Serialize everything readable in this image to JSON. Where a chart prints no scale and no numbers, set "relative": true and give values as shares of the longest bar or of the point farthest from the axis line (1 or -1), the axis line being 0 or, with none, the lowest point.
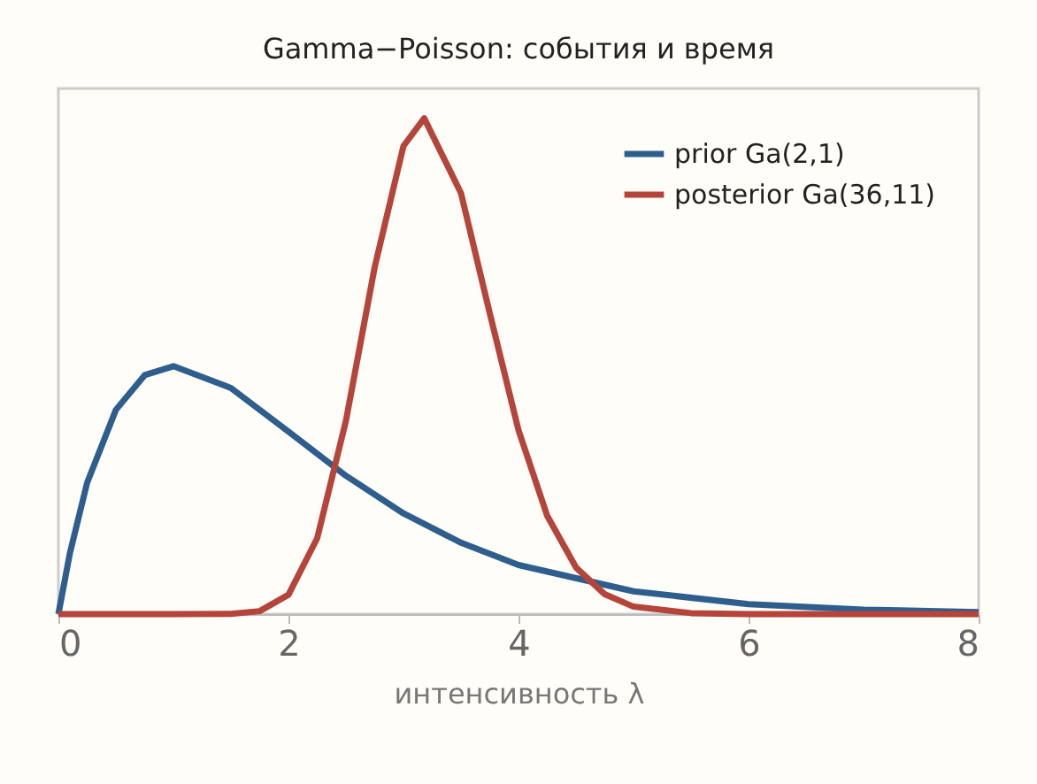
{
  "chart_data": {
    "type": "line",
    "title": "Gamma−Poisson: события и время",
    "xlabel": "интенсивность λ",
    "relative": true,
    "xlim": [
      0,
      8
    ],
    "xticks": [
      0,
      2,
      4,
      6,
      8
    ],
    "grid": false,
    "legend": "top right",
    "marker": "none",
    "line_style": "solid",
    "tick_labels": "x",
    "series": [
      {
        "name": "prior Ga(2,1)",
        "color": "#2e5e8e",
        "x": [
          0,
          0.1,
          0.25,
          0.5,
          0.75,
          1,
          1.5,
          2,
          2.5,
          3,
          3.5,
          4,
          5,
          6,
          7,
          8
        ],
        "values": [
          0,
          0.123,
          0.265,
          0.412,
          0.482,
          0.5,
          0.456,
          0.368,
          0.279,
          0.203,
          0.144,
          0.099,
          0.046,
          0.02,
          0.009,
          0.004
        ]
      },
      {
        "name": "posterior Ga(36,11)",
        "color": "#b5443a",
        "x": [
          0,
          1,
          1.5,
          1.75,
          2,
          2.25,
          2.5,
          2.75,
          3,
          3.18,
          3.5,
          3.75,
          4,
          4.25,
          4.5,
          4.75,
          5,
          5.5,
          6,
          7,
          8
        ],
        "values": [
          0,
          0,
          0.0004,
          0.006,
          0.039,
          0.153,
          0.39,
          0.7,
          0.944,
          1,
          0.849,
          0.607,
          0.371,
          0.198,
          0.094,
          0.04,
          0.015,
          0.002,
          0,
          0,
          0
        ]
      }
    ]
  }
}
